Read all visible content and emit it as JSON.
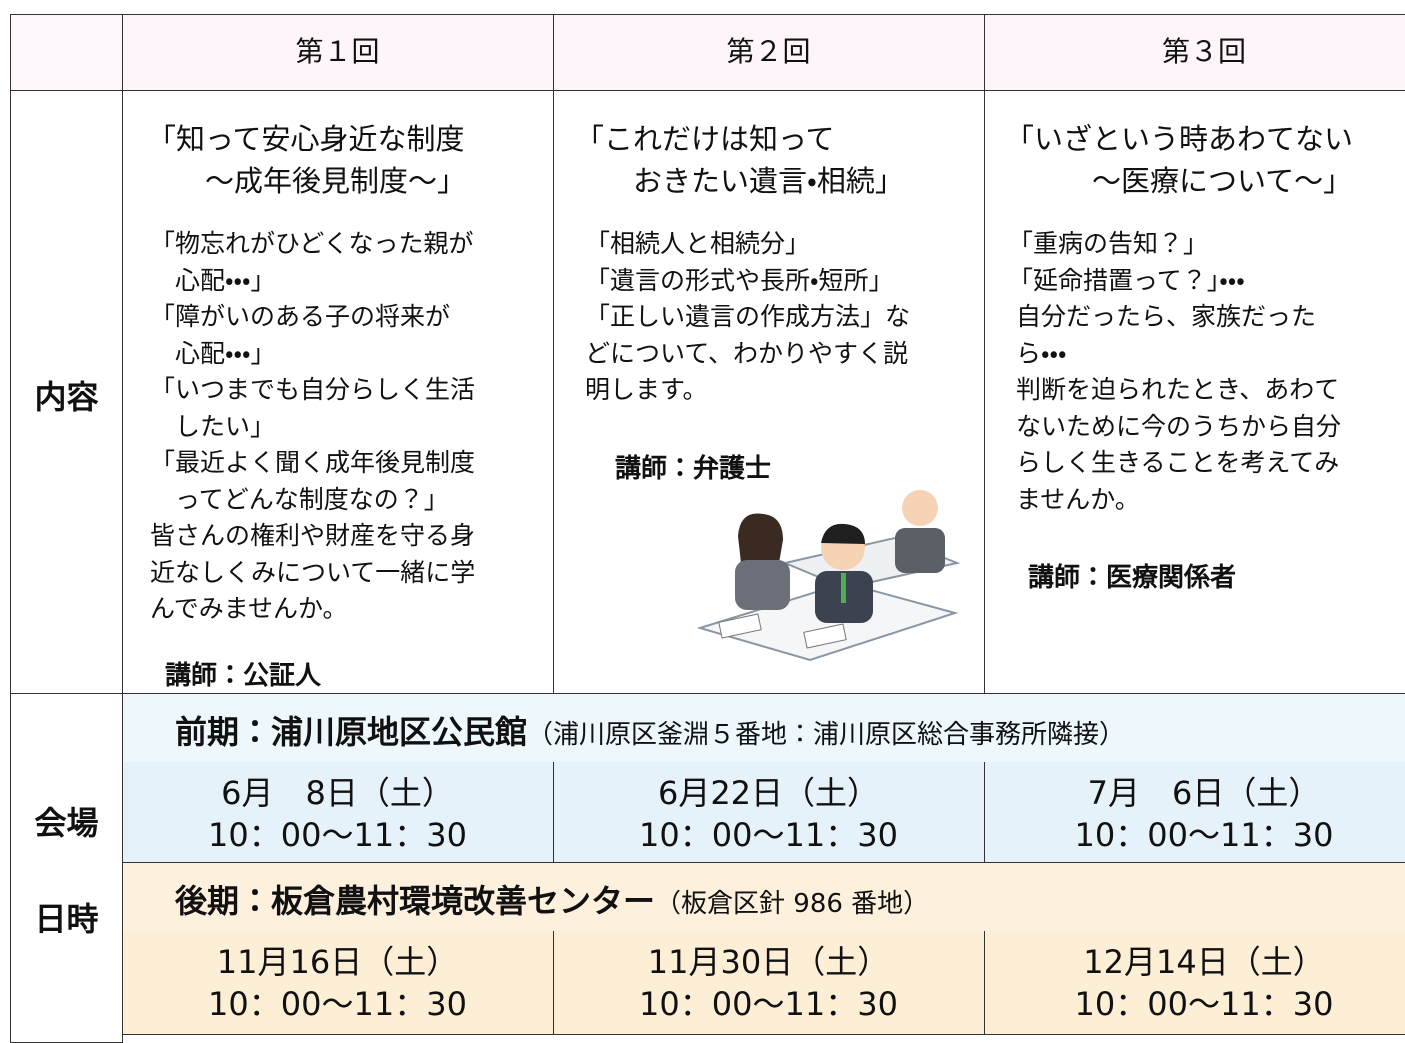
{
  "table": {
    "header": [
      "第１回",
      "第２回",
      "第３回"
    ],
    "content_label": "内容",
    "sessions": [
      {
        "title_lines": [
          "「知って安心身近な制度",
          "　　～成年後見制度～」"
        ],
        "body_lines": [
          "「物忘れがひどくなった親が",
          "　心配・・・」",
          "「障がいのある子の将来が",
          "　心配・・・」",
          "「いつまでも自分らしく生活",
          "　したい」",
          "「最近よく聞く成年後見制度",
          "　ってどんな制度なの？」",
          "皆さんの権利や財産を守る身",
          "近なしくみについて一緒に学",
          "んでみませんか。"
        ],
        "lecturer": "講師：公証人"
      },
      {
        "title_lines": [
          "「これだけは知って",
          "　　おきたい遺言・相続」"
        ],
        "body_lines": [
          "「相続人と相続分」",
          "「遺言の形式や長所・短所」",
          "「正しい遺言の作成方法」な",
          "どについて、わかりやすく説",
          "明します。"
        ],
        "lecturer": "講師：弁護士"
      },
      {
        "title_lines": [
          "「いざという時あわてない",
          "　　　～医療について～」"
        ],
        "body_lines": [
          "「重病の告知？」",
          "「延命措置って？」・・・",
          " 自分だったら、家族だった",
          " ら・・・",
          " 判断を迫られたとき、あわて",
          " ないために今のうちから自分",
          " らしく生きることを考えてみ",
          " ませんか。"
        ],
        "lecturer": "講師：医療関係者"
      }
    ],
    "schedule_label_lines": [
      "会場",
      "日時"
    ],
    "terms": [
      {
        "venue": "前期：浦川原地区公民館",
        "venue_note": "（浦川原区釜淵５番地：浦川原区総合事務所隣接）",
        "dates": [
          {
            "date": "6月　8日（土）",
            "time": "10：00～11：30"
          },
          {
            "date": "6月22日（土）",
            "time": "10：00～11：30"
          },
          {
            "date": "7月　6日（土）",
            "time": "10：00～11：30"
          }
        ]
      },
      {
        "venue": "後期：板倉農村環境改善センター",
        "venue_note": "（板倉区針 986 番地）",
        "dates": [
          {
            "date": "11月16日（土）",
            "time": "10：00～11：30"
          },
          {
            "date": "11月30日（土）",
            "time": "10：00～11：30"
          },
          {
            "date": "12月14日（土）",
            "time": "10：00～11：30"
          }
        ]
      }
    ]
  }
}
